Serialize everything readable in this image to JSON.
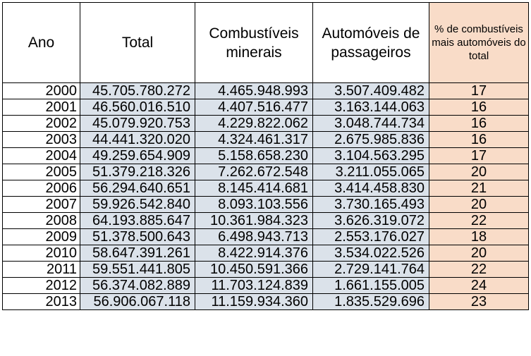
{
  "headers": {
    "ano": "Ano",
    "total": "Total",
    "combustiveis": "Combustíveis minerais",
    "automoveis": "Automóveis de passageiros",
    "percentual": "% de combustíveis mais automóveis do total"
  },
  "rows": [
    {
      "ano": "2000",
      "total": "45.705.780.272",
      "combustiveis": "4.465.948.993",
      "automoveis": "3.507.409.482",
      "pct": "17"
    },
    {
      "ano": "2001",
      "total": "46.560.016.510",
      "combustiveis": "4.407.516.477",
      "automoveis": "3.163.144.063",
      "pct": "16"
    },
    {
      "ano": "2002",
      "total": "45.079.920.753",
      "combustiveis": "4.229.822.062",
      "automoveis": "3.048.744.734",
      "pct": "16"
    },
    {
      "ano": "2003",
      "total": "44.441.320.020",
      "combustiveis": "4.324.461.317",
      "automoveis": "2.675.985.836",
      "pct": "16"
    },
    {
      "ano": "2004",
      "total": "49.259.654.909",
      "combustiveis": "5.158.658.230",
      "automoveis": "3.104.563.295",
      "pct": "17"
    },
    {
      "ano": "2005",
      "total": "51.379.218.326",
      "combustiveis": "7.262.672.548",
      "automoveis": "3.211.055.065",
      "pct": "20"
    },
    {
      "ano": "2006",
      "total": "56.294.640.651",
      "combustiveis": "8.145.414.681",
      "automoveis": "3.414.458.830",
      "pct": "21"
    },
    {
      "ano": "2007",
      "total": "59.926.542.840",
      "combustiveis": "8.093.103.556",
      "automoveis": "3.730.165.493",
      "pct": "20"
    },
    {
      "ano": "2008",
      "total": "64.193.885.647",
      "combustiveis": "10.361.984.323",
      "automoveis": "3.626.319.072",
      "pct": "22"
    },
    {
      "ano": "2009",
      "total": "51.378.500.643",
      "combustiveis": "6.498.943.713",
      "automoveis": "2.553.176.027",
      "pct": "18"
    },
    {
      "ano": "2010",
      "total": "58.647.391.261",
      "combustiveis": "8.422.914.376",
      "automoveis": "3.534.022.526",
      "pct": "20"
    },
    {
      "ano": "2011",
      "total": "59.551.441.805",
      "combustiveis": "10.450.591.366",
      "automoveis": "2.729.141.764",
      "pct": "22"
    },
    {
      "ano": "2012",
      "total": "56.374.082.889",
      "combustiveis": "11.703.124.839",
      "automoveis": "1.661.155.005",
      "pct": "24"
    },
    {
      "ano": "2013",
      "total": "56.906.067.118",
      "combustiveis": "11.159.934.360",
      "automoveis": "1.835.529.696",
      "pct": "23"
    }
  ]
}
